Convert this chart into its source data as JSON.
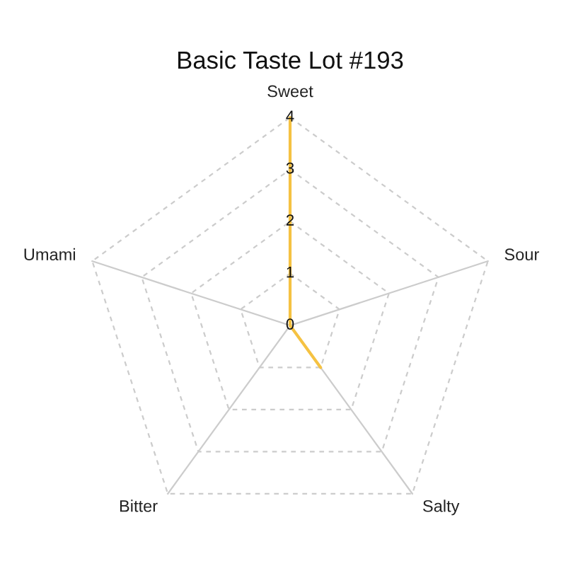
{
  "chart_data": {
    "type": "radar",
    "title": "Basic Taste Lot #193",
    "categories": [
      "Sweet",
      "Sour",
      "Salty",
      "Bitter",
      "Umami"
    ],
    "series": [
      {
        "color": "#f5c242",
        "values": [
          4,
          0,
          1,
          0,
          0
        ]
      }
    ],
    "ylim": [
      0,
      4
    ],
    "yticks": [
      0,
      1,
      2,
      3,
      4
    ],
    "grid": true
  }
}
